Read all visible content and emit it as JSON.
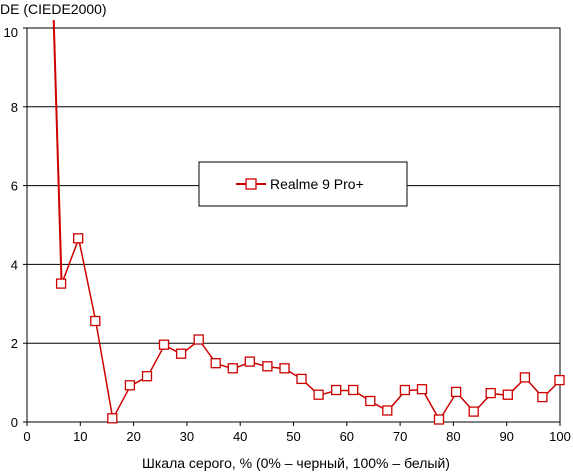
{
  "chart_data": {
    "type": "line",
    "ylabel": "DE (CIEDE2000)",
    "xlabel": "Шкала серого, % (0% – черный, 100% – белый)",
    "xlim": [
      0,
      100
    ],
    "ylim": [
      0,
      10
    ],
    "xticks": [
      "0",
      "10",
      "20",
      "30",
      "40",
      "50",
      "60",
      "70",
      "80",
      "90",
      "100"
    ],
    "yticks": [
      "0",
      "2",
      "4",
      "6",
      "8",
      "10"
    ],
    "grid": "horizontal",
    "legend_position": "center",
    "series": [
      {
        "name": "Realme 9 Pro+",
        "color": "#cc0000",
        "marker": "open-square",
        "leading_line": [
          [
            5.0,
            10.2
          ],
          [
            6.5,
            3.5
          ]
        ],
        "x": [
          6.5,
          9.7,
          12.9,
          16.1,
          19.4,
          22.6,
          25.8,
          29.0,
          32.3,
          35.5,
          38.7,
          41.9,
          45.2,
          48.4,
          51.6,
          54.8,
          58.1,
          61.3,
          64.5,
          67.7,
          71.0,
          74.2,
          77.4,
          80.6,
          83.9,
          87.1,
          90.3,
          93.5,
          96.8,
          100.0
        ],
        "y": [
          3.5,
          4.65,
          2.55,
          0.08,
          0.92,
          1.15,
          1.95,
          1.72,
          2.08,
          1.48,
          1.35,
          1.52,
          1.4,
          1.35,
          1.08,
          0.68,
          0.8,
          0.8,
          0.52,
          0.28,
          0.8,
          0.82,
          0.05,
          0.75,
          0.25,
          0.72,
          0.68,
          1.12,
          0.62,
          1.05
        ]
      }
    ]
  }
}
